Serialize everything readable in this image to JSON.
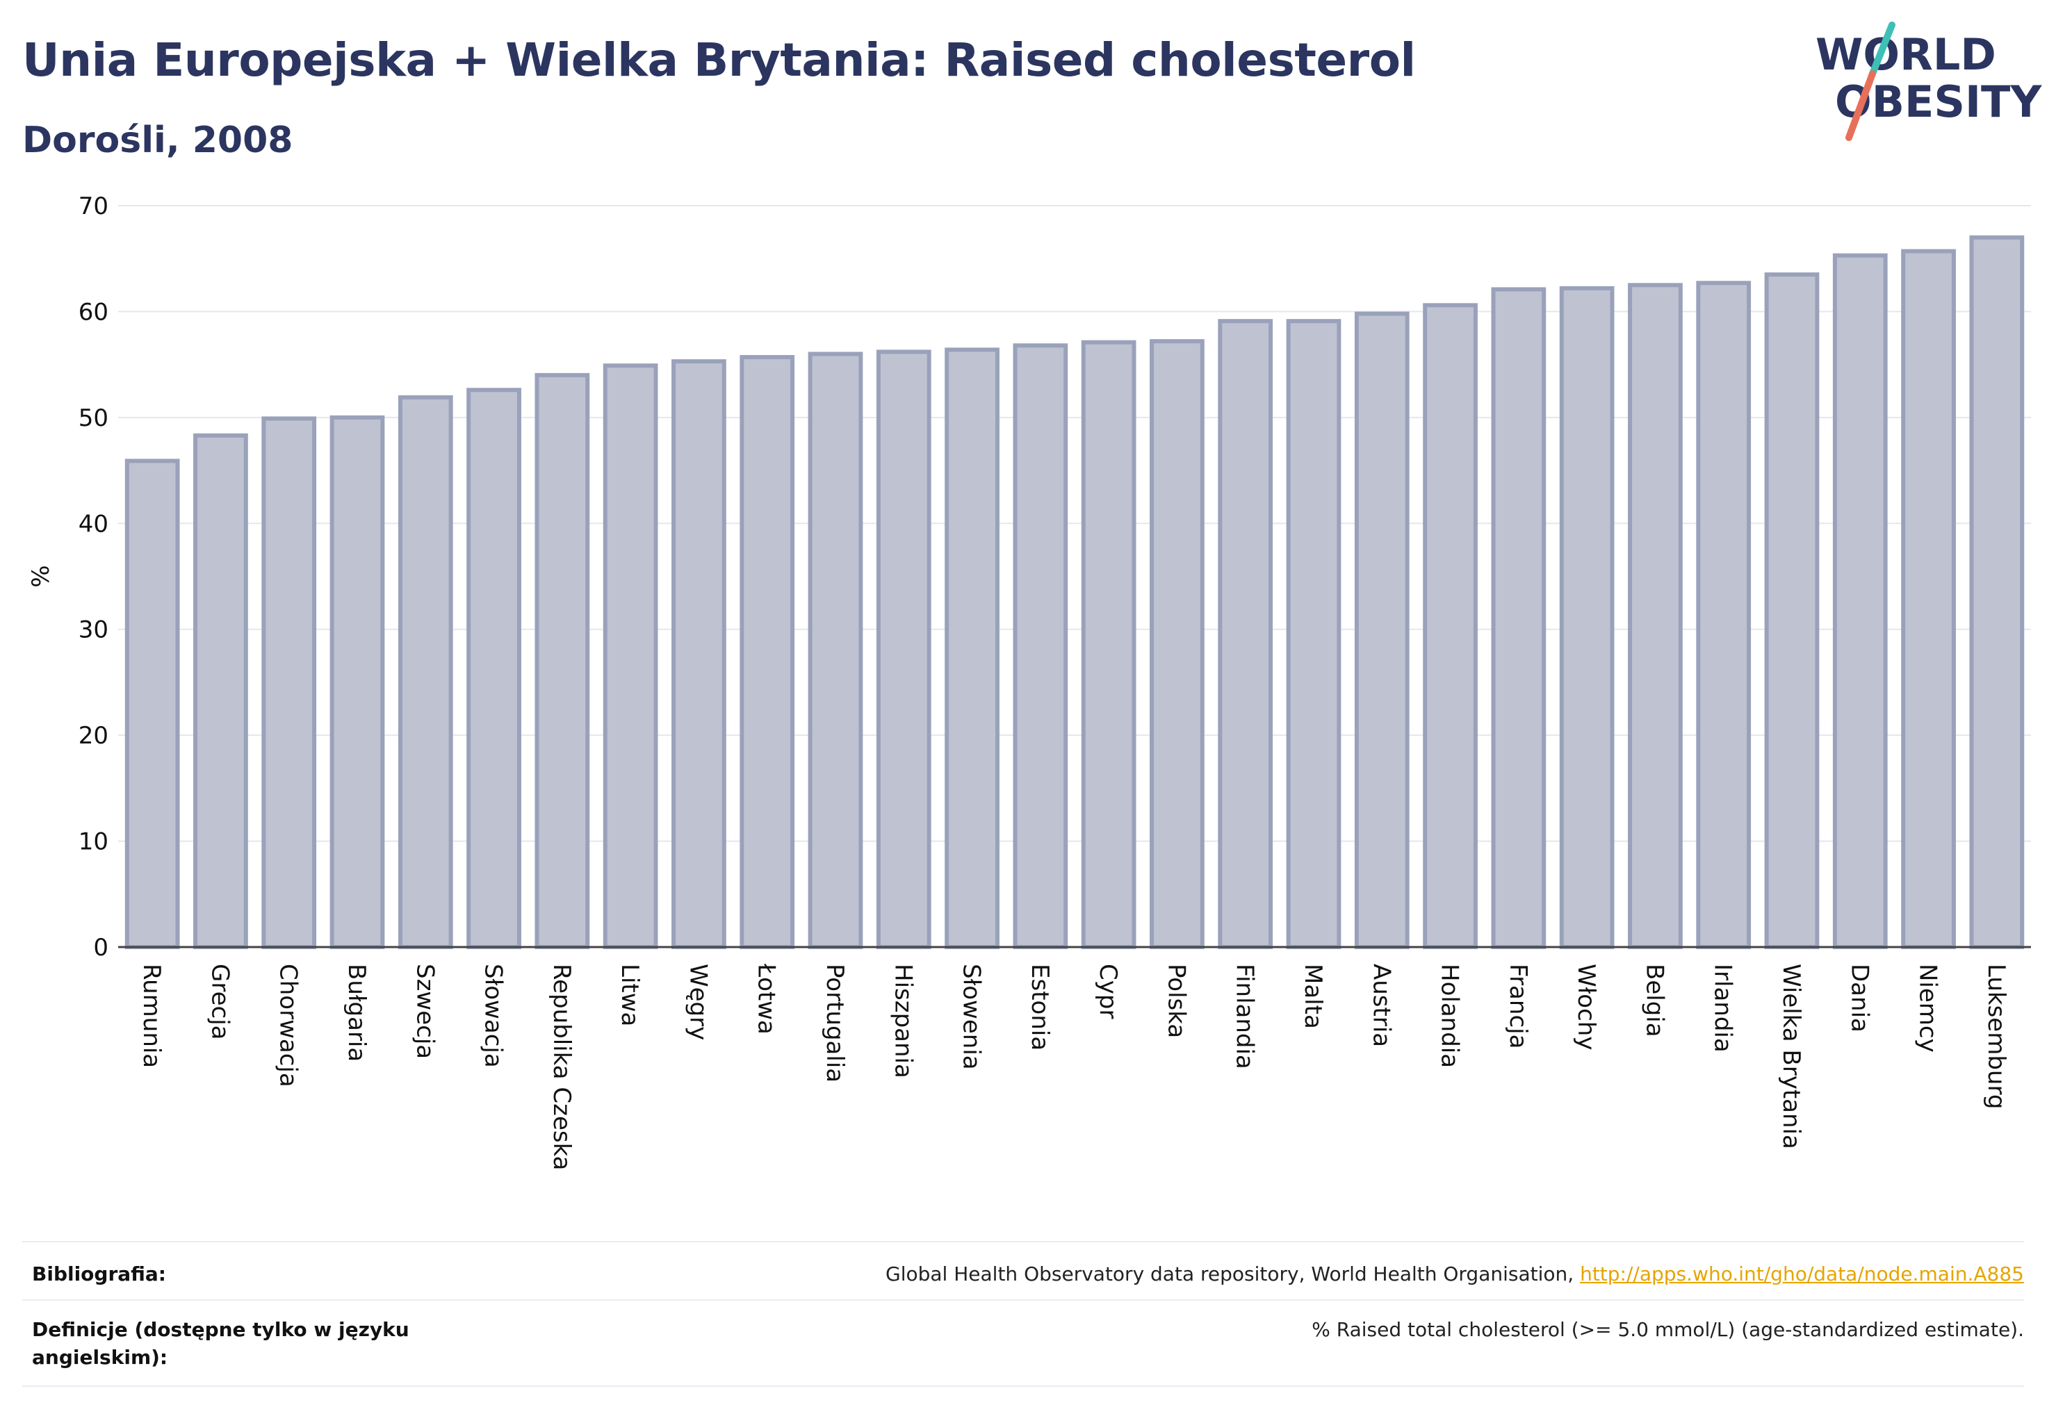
{
  "header": {
    "title": "Unia Europejska + Wielka Brytania: Raised cholesterol",
    "subtitle": "Dorośli, 2008"
  },
  "logo": {
    "line1": "WORLD",
    "line2": "OBESITY",
    "slash_colors": [
      "#3fbfb6",
      "#e8705a"
    ]
  },
  "colors": {
    "text_dark": "#2b3560",
    "bar_fill": "#bfc3d1",
    "bar_stroke": "#9aa1ba",
    "gridline": "#e5e7ee",
    "link": "#e6a400"
  },
  "chart_data": {
    "type": "bar",
    "ylabel": "%",
    "ylim": [
      0,
      70
    ],
    "yticks": [
      0,
      10,
      20,
      30,
      40,
      50,
      60,
      70
    ],
    "grid": true,
    "categories": [
      "Rumunia",
      "Grecja",
      "Chorwacja",
      "Bułgaria",
      "Szwecja",
      "Słowacja",
      "Republika Czeska",
      "Litwa",
      "Węgry",
      "Łotwa",
      "Portugalia",
      "Hiszpania",
      "Słowenia",
      "Estonia",
      "Cypr",
      "Polska",
      "Finlandia",
      "Malta",
      "Austria",
      "Holandia",
      "Francja",
      "Włochy",
      "Belgia",
      "Irlandia",
      "Wielka Brytania",
      "Dania",
      "Niemcy",
      "Luksemburg"
    ],
    "values": [
      45.9,
      48.3,
      49.9,
      50.0,
      51.9,
      52.6,
      54.0,
      54.9,
      55.3,
      55.7,
      56.0,
      56.2,
      56.4,
      56.8,
      57.1,
      57.2,
      59.1,
      59.1,
      59.8,
      60.6,
      62.1,
      62.2,
      62.5,
      62.7,
      63.5,
      65.3,
      65.7,
      67.0
    ]
  },
  "footer": {
    "bibliography_label": "Bibliografia:",
    "bibliography_text": "Global Health Observatory data repository, World Health Organisation, ",
    "bibliography_link": "http://apps.who.int/gho/data/node.main.A885",
    "definitions_label_line1": "Definicje (dostępne tylko w języku",
    "definitions_label_line2": "angielskim):",
    "definitions_text": "% Raised total cholesterol (>= 5.0 mmol/L) (age-standardized estimate)."
  }
}
